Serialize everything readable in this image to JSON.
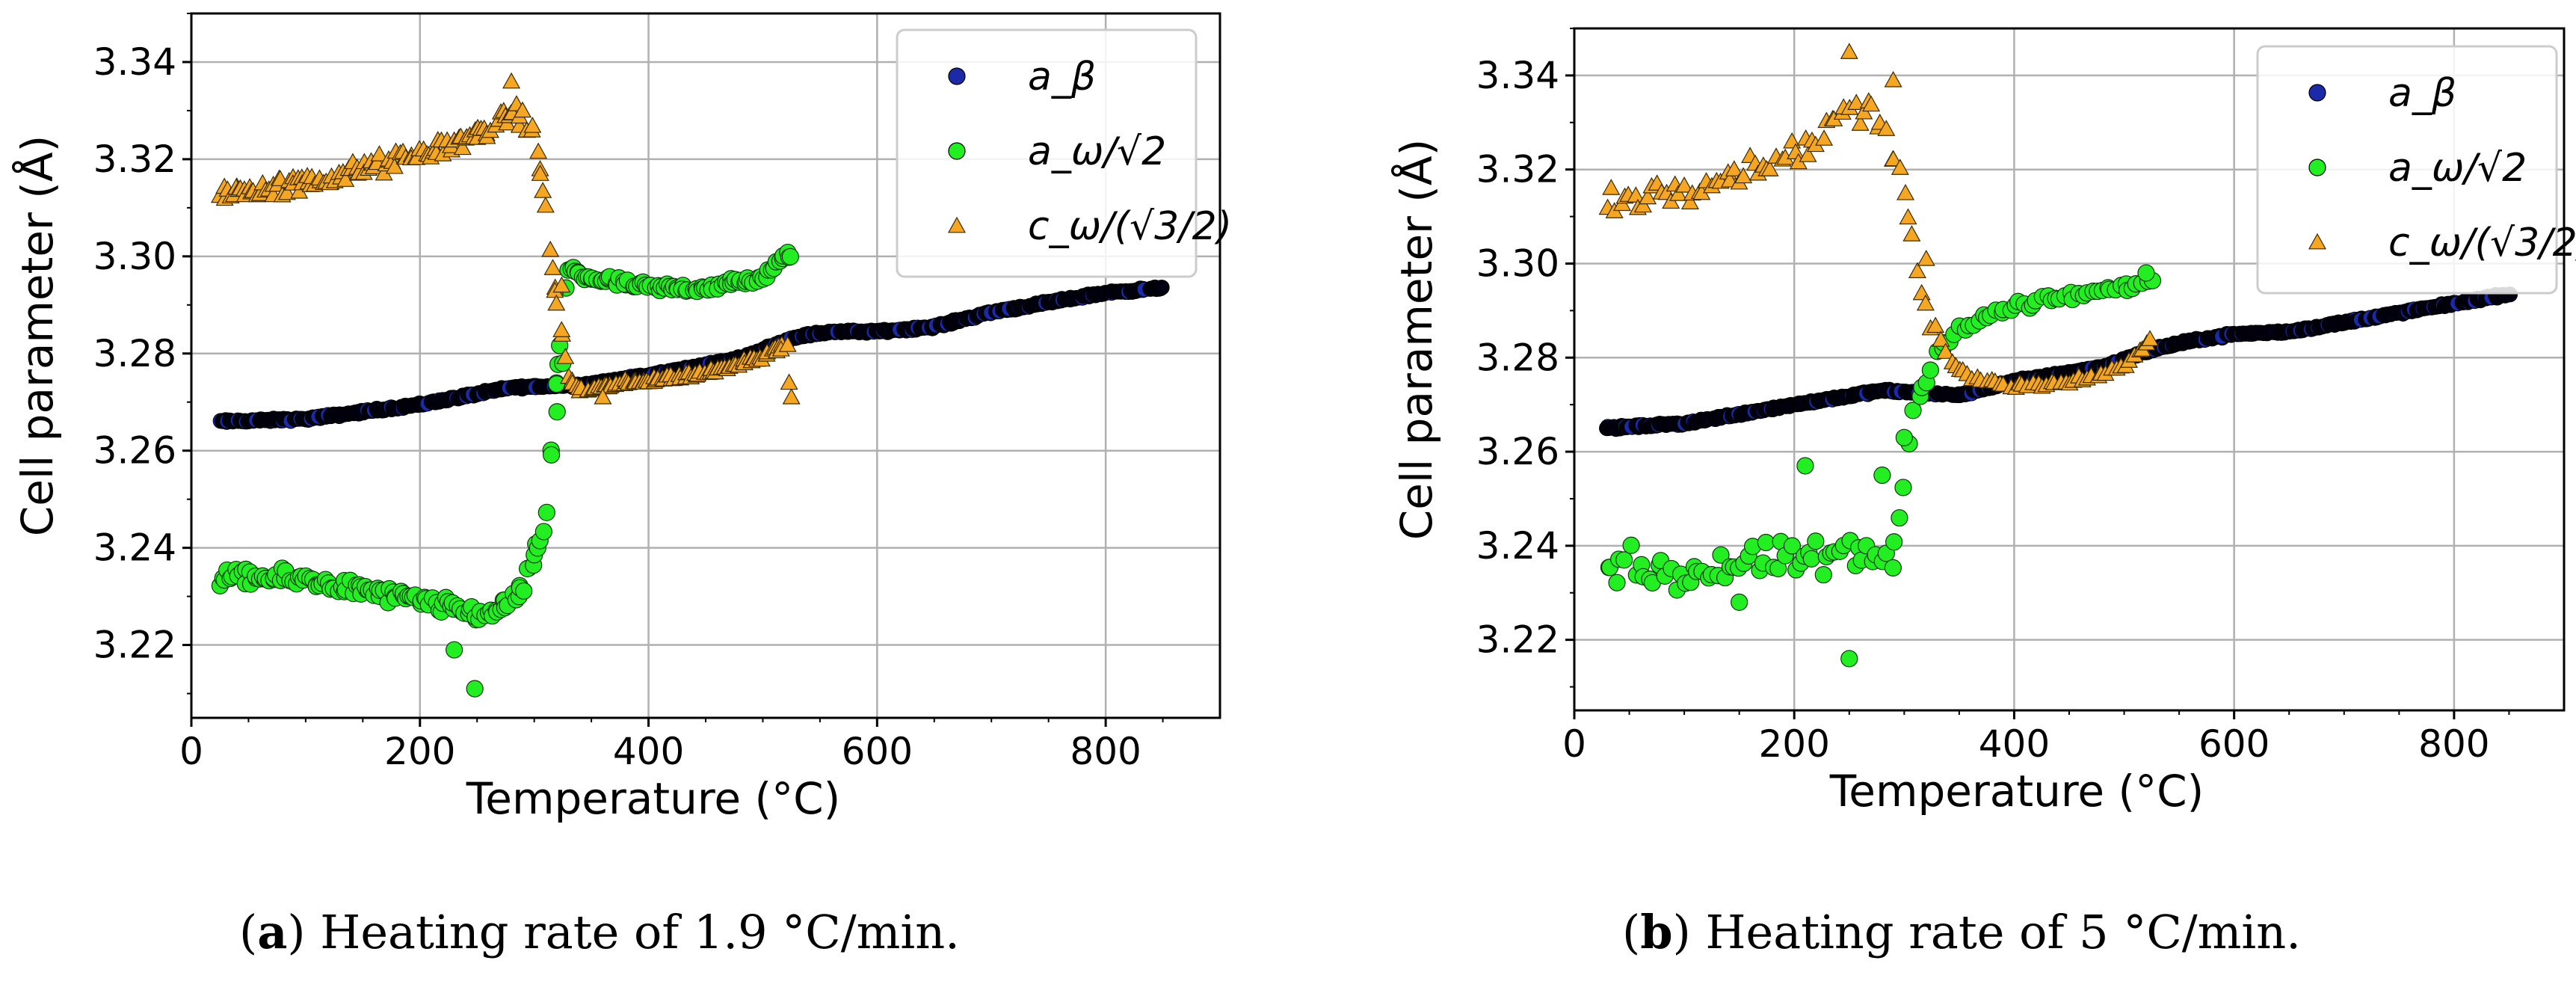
{
  "colors": {
    "a_beta": "#1a2aa8",
    "a_beta_dark": "#000010",
    "a_omega": "#22ee22",
    "c_omega": "#f5a623",
    "grid": "#b0b0b0"
  },
  "captions": [
    {
      "label": "a",
      "text": "Heating rate of 1.9 °C/min."
    },
    {
      "label": "b",
      "text": "Heating rate of 5 °C/min."
    }
  ],
  "chart_data": [
    {
      "type": "scatter",
      "title": "",
      "xlabel": "Temperature (°C)",
      "ylabel": "Cell parameter (Å)",
      "xlim": [
        0,
        900
      ],
      "ylim": [
        3.205,
        3.35
      ],
      "xticks": [
        "0",
        "200",
        "400",
        "600",
        "800"
      ],
      "yticks": [
        "3.22",
        "3.24",
        "3.26",
        "3.28",
        "3.30",
        "3.32",
        "3.34"
      ],
      "grid": true,
      "legend_position": "top-right",
      "legend": [
        "a_β",
        "a_ω/√2",
        "c_ω/(√3/2)"
      ],
      "series": [
        {
          "name": "a_β",
          "marker": "circle",
          "x": [
            25,
            100,
            200,
            280,
            340,
            400,
            480,
            530,
            560,
            600,
            650,
            700,
            750,
            800,
            850
          ],
          "y": [
            3.266,
            3.2665,
            3.2695,
            3.273,
            3.2735,
            3.2755,
            3.279,
            3.2835,
            3.2845,
            3.2845,
            3.2855,
            3.2885,
            3.2905,
            3.2925,
            3.2935
          ]
        },
        {
          "name": "a_ω/√2",
          "marker": "circle",
          "x": [
            25,
            100,
            200,
            260,
            290,
            310,
            320,
            330,
            340,
            400,
            450,
            500,
            525
          ],
          "y": [
            3.234,
            3.2335,
            3.229,
            3.226,
            3.231,
            3.245,
            3.275,
            3.2985,
            3.296,
            3.2935,
            3.2935,
            3.2955,
            3.301
          ],
          "extra_points": [
            [
              248,
              3.211
            ],
            [
              230,
              3.219
            ],
            [
              320,
              3.268
            ],
            [
              325,
              3.278
            ]
          ]
        },
        {
          "name": "c_ω/(√3/2)",
          "marker": "triangle",
          "x": [
            25,
            100,
            150,
            200,
            250,
            280,
            300,
            310,
            320,
            330,
            340,
            400,
            450,
            500,
            520
          ],
          "y": [
            3.313,
            3.315,
            3.318,
            3.321,
            3.325,
            3.3295,
            3.326,
            3.31,
            3.29,
            3.275,
            3.2725,
            3.2745,
            3.276,
            3.2795,
            3.282
          ],
          "extra_points": [
            [
              280,
              3.336
            ],
            [
              324,
              3.294
            ],
            [
              360,
              3.271
            ],
            [
              525,
              3.271
            ],
            [
              523,
              3.274
            ]
          ]
        }
      ]
    },
    {
      "type": "scatter",
      "title": "",
      "xlabel": "Temperature (°C)",
      "ylabel": "Cell parameter (Å)",
      "xlim": [
        0,
        900
      ],
      "ylim": [
        3.205,
        3.35
      ],
      "xticks": [
        "0",
        "200",
        "400",
        "600",
        "800"
      ],
      "yticks": [
        "3.22",
        "3.24",
        "3.26",
        "3.28",
        "3.30",
        "3.32",
        "3.34"
      ],
      "grid": true,
      "legend_position": "top-right",
      "legend": [
        "a_β",
        "a_ω/√2",
        "c_ω/(√3/2)"
      ],
      "series": [
        {
          "name": "a_β",
          "marker": "circle",
          "x": [
            30,
            100,
            200,
            280,
            350,
            400,
            480,
            530,
            560,
            600,
            650,
            700,
            750,
            800,
            850
          ],
          "y": [
            3.265,
            3.266,
            3.27,
            3.273,
            3.272,
            3.275,
            3.278,
            3.282,
            3.2835,
            3.285,
            3.2855,
            3.2875,
            3.2895,
            3.2915,
            3.2935
          ]
        },
        {
          "name": "a_ω/√2",
          "marker": "circle",
          "x": [
            30,
            100,
            200,
            290,
            310,
            330,
            350,
            380,
            400,
            450,
            500,
            525
          ],
          "y": [
            3.236,
            3.234,
            3.237,
            3.238,
            3.27,
            3.2815,
            3.286,
            3.289,
            3.291,
            3.293,
            3.295,
            3.296
          ],
          "extra_points": [
            [
              250,
              3.216
            ],
            [
              210,
              3.257
            ],
            [
              280,
              3.255
            ],
            [
              150,
              3.228
            ],
            [
              300,
              3.263
            ],
            [
              520,
              3.298
            ]
          ]
        },
        {
          "name": "c_ω/(√3/2)",
          "marker": "triangle",
          "x": [
            30,
            80,
            130,
            180,
            220,
            250,
            280,
            300,
            320,
            340,
            360,
            400,
            450,
            500,
            525
          ],
          "y": [
            3.313,
            3.315,
            3.318,
            3.322,
            3.326,
            3.334,
            3.33,
            3.315,
            3.29,
            3.28,
            3.276,
            3.274,
            3.275,
            3.278,
            3.284
          ],
          "extra_points": [
            [
              250,
              3.345
            ],
            [
              290,
              3.339
            ],
            [
              320,
              3.301
            ]
          ]
        }
      ]
    }
  ]
}
